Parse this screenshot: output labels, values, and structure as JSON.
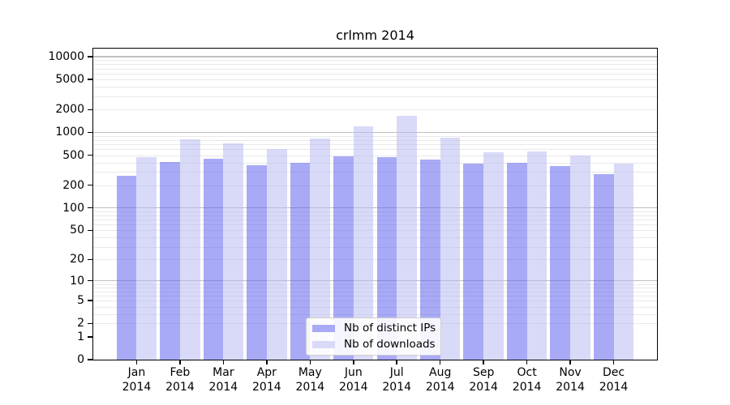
{
  "chart_data": {
    "type": "bar",
    "title": "crlmm 2014",
    "months": [
      "Jan",
      "Feb",
      "Mar",
      "Apr",
      "May",
      "Jun",
      "Jul",
      "Aug",
      "Sep",
      "Oct",
      "Nov",
      "Dec"
    ],
    "year": "2014",
    "categories": [
      "Jan 2014",
      "Feb 2014",
      "Mar 2014",
      "Apr 2014",
      "May 2014",
      "Jun 2014",
      "Jul 2014",
      "Aug 2014",
      "Sep 2014",
      "Oct 2014",
      "Nov 2014",
      "Dec 2014"
    ],
    "series": [
      {
        "name": "Nb of distinct IPs",
        "swatch_color": "#a9aaf6",
        "bar_fill": "rgba(84, 85, 238, 0.5)",
        "values": [
          270,
          410,
          445,
          365,
          395,
          485,
          475,
          435,
          390,
          400,
          360,
          280
        ]
      },
      {
        "name": "Nb of downloads",
        "swatch_color": "#d9daf7",
        "bar_fill": "rgba(179, 181, 240, 0.5)",
        "values": [
          470,
          820,
          715,
          610,
          830,
          1210,
          1645,
          850,
          540,
          565,
          490,
          390
        ]
      }
    ],
    "yscale": "log10(value+1)",
    "ylim": [
      0,
      12800
    ],
    "y_tick_values": [
      10000,
      5000,
      2000,
      1000,
      500,
      200,
      100,
      50,
      20,
      10,
      5,
      2,
      1,
      0
    ],
    "grid": "on",
    "legend_position": "lower center"
  },
  "styles": {
    "background": "#ffffff",
    "frame_color": "#000000",
    "grid_major_color": "#c0c0c0",
    "grid_minor_color": "#e9e9e9",
    "text_color": "#000000"
  }
}
